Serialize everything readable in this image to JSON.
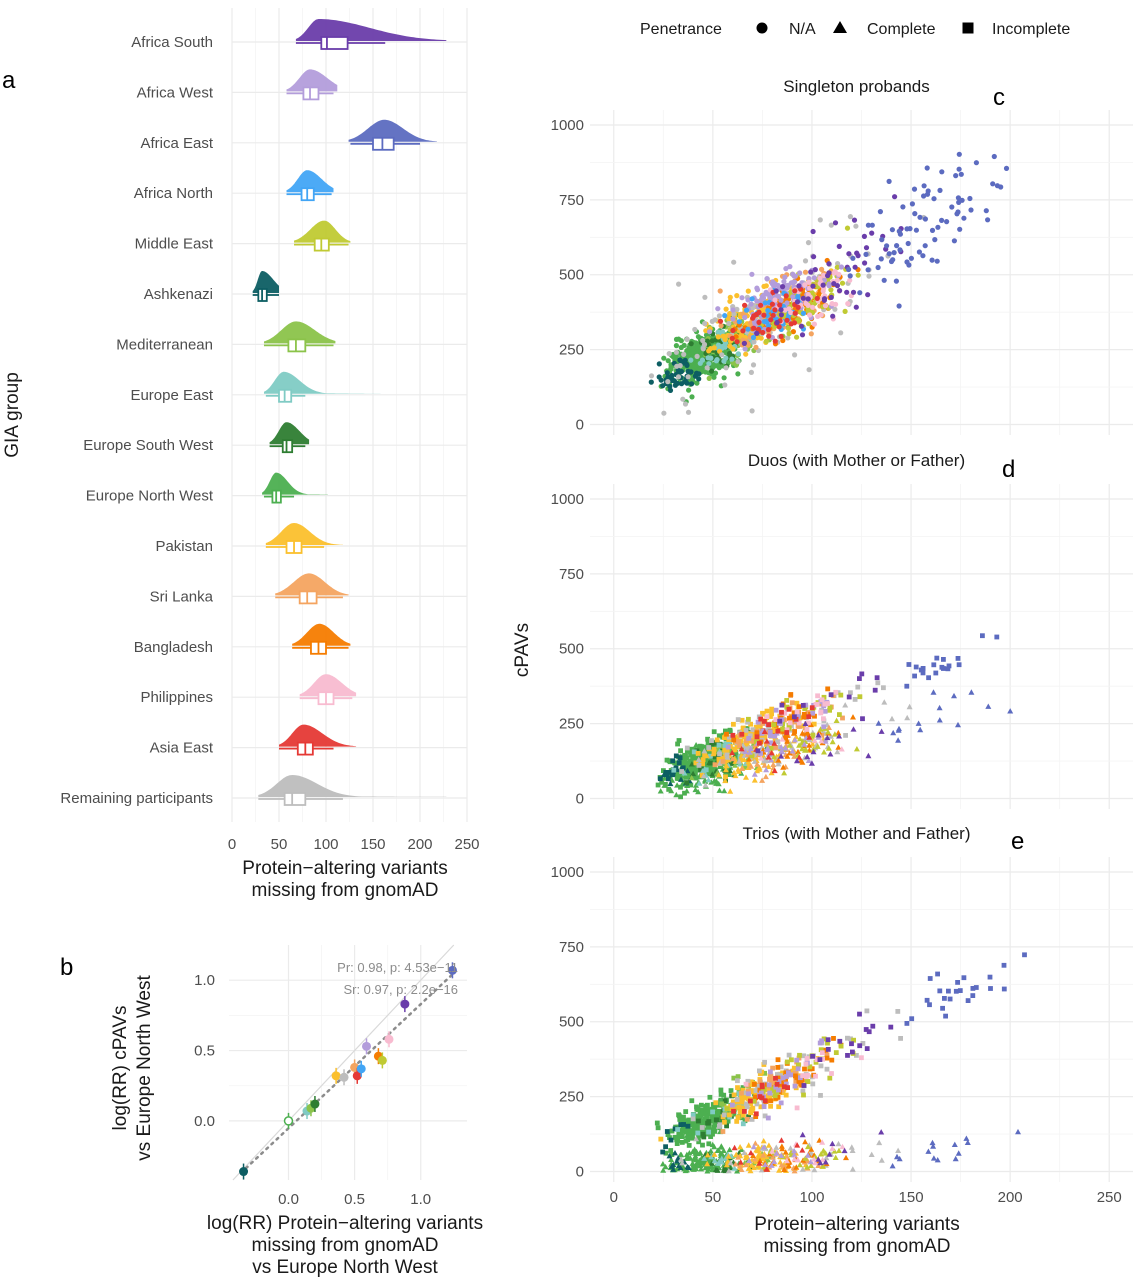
{
  "colors": {
    "Africa South": "#6a3daa",
    "Africa West": "#b39ddb",
    "Africa East": "#5c6bc0",
    "Africa North": "#42a5f5",
    "Middle East": "#c0ca33",
    "Ashkenazi": "#0d5e63",
    "Mediterranean": "#8bc34a",
    "Europe East": "#80cbc4",
    "Europe South West": "#2e7d32",
    "Europe North West": "#4caf50",
    "Pakistan": "#fbc02d",
    "Sri Lanka": "#f4a460",
    "Bangladesh": "#f57c00",
    "Philippines": "#f8bbd0",
    "Asia East": "#e53935",
    "Remaining participants": "#bdbdbd"
  },
  "legend": {
    "title": "Penetrance",
    "items": [
      {
        "label": "N/A",
        "shape": "circle"
      },
      {
        "label": "Complete",
        "shape": "triangle"
      },
      {
        "label": "Incomplete",
        "shape": "square"
      }
    ]
  },
  "chart_data": [
    {
      "panel": "a",
      "type": "raincloud",
      "ylabel": "GIA group",
      "xlabel": "Protein−altering variants missing from gnomAD",
      "xlabel_lines": [
        "Protein−altering variants",
        "missing from gnomAD"
      ],
      "xlim": [
        0,
        250
      ],
      "xticks": [
        0,
        50,
        100,
        150,
        200,
        250
      ],
      "groups": [
        {
          "name": "Africa South",
          "q1": 95,
          "median": 101,
          "q3": 123,
          "whisker_low": 68,
          "whisker_high": 163,
          "peak": 92,
          "dens_low": 68,
          "dens_high": 228
        },
        {
          "name": "Africa West",
          "q1": 76,
          "median": 83,
          "q3": 92,
          "whisker_low": 58,
          "whisker_high": 108,
          "peak": 83,
          "dens_low": 58,
          "dens_high": 112
        },
        {
          "name": "Africa East",
          "q1": 150,
          "median": 160,
          "q3": 172,
          "whisker_low": 126,
          "whisker_high": 200,
          "peak": 162,
          "dens_low": 124,
          "dens_high": 218
        },
        {
          "name": "Africa North",
          "q1": 74,
          "median": 80,
          "q3": 87,
          "whisker_low": 58,
          "whisker_high": 106,
          "peak": 80,
          "dens_low": 58,
          "dens_high": 108
        },
        {
          "name": "Middle East",
          "q1": 88,
          "median": 95,
          "q3": 103,
          "whisker_low": 66,
          "whisker_high": 124,
          "peak": 98,
          "dens_low": 66,
          "dens_high": 126
        },
        {
          "name": "Ashkenazi",
          "q1": 28,
          "median": 32,
          "q3": 37,
          "whisker_low": 22,
          "whisker_high": 50,
          "peak": 32,
          "dens_low": 22,
          "dens_high": 50
        },
        {
          "name": "Mediterranean",
          "q1": 60,
          "median": 68,
          "q3": 78,
          "whisker_low": 34,
          "whisker_high": 108,
          "peak": 68,
          "dens_low": 34,
          "dens_high": 110
        },
        {
          "name": "Europe East",
          "q1": 50,
          "median": 56,
          "q3": 63,
          "whisker_low": 36,
          "whisker_high": 78,
          "peak": 55,
          "dens_low": 34,
          "dens_high": 158
        },
        {
          "name": "Europe South West",
          "q1": 54,
          "median": 58,
          "q3": 64,
          "whisker_low": 40,
          "whisker_high": 78,
          "peak": 58,
          "dens_low": 40,
          "dens_high": 82
        },
        {
          "name": "Europe North West",
          "q1": 43,
          "median": 47,
          "q3": 52,
          "whisker_low": 34,
          "whisker_high": 66,
          "peak": 47,
          "dens_low": 32,
          "dens_high": 102
        },
        {
          "name": "Pakistan",
          "q1": 58,
          "median": 66,
          "q3": 74,
          "whisker_low": 36,
          "whisker_high": 98,
          "peak": 66,
          "dens_low": 36,
          "dens_high": 118
        },
        {
          "name": "Sri Lanka",
          "q1": 72,
          "median": 80,
          "q3": 90,
          "whisker_low": 46,
          "whisker_high": 118,
          "peak": 82,
          "dens_low": 46,
          "dens_high": 124
        },
        {
          "name": "Bangladesh",
          "q1": 84,
          "median": 92,
          "q3": 100,
          "whisker_low": 64,
          "whisker_high": 124,
          "peak": 93,
          "dens_low": 64,
          "dens_high": 126
        },
        {
          "name": "Philippines",
          "q1": 92,
          "median": 100,
          "q3": 108,
          "whisker_low": 72,
          "whisker_high": 128,
          "peak": 100,
          "dens_low": 72,
          "dens_high": 132
        },
        {
          "name": "Asia East",
          "q1": 70,
          "median": 78,
          "q3": 86,
          "whisker_low": 50,
          "whisker_high": 108,
          "peak": 76,
          "dens_low": 50,
          "dens_high": 132
        },
        {
          "name": "Remaining participants",
          "q1": 56,
          "median": 64,
          "q3": 78,
          "whisker_low": 28,
          "whisker_high": 118,
          "peak": 64,
          "dens_low": 28,
          "dens_high": 228
        }
      ]
    },
    {
      "panel": "b",
      "type": "scatter",
      "ylabel": "log(RR) cPAVs vs Europe North West",
      "ylabel_lines": [
        "log(RR) cPAVs",
        "vs Europe North West"
      ],
      "xlabel": "log(RR) Protein−altering variants missing from gnomAD vs Europe North West",
      "xlabel_lines": [
        "log(RR) Protein−altering variants",
        "missing from gnomAD",
        "vs Europe North West"
      ],
      "xlim": [
        -0.45,
        1.35
      ],
      "ylim": [
        -0.42,
        1.25
      ],
      "xticks": [
        0.0,
        0.5,
        1.0
      ],
      "xtick_labels": [
        "0.0",
        "0.5",
        "1.0"
      ],
      "yticks": [
        0.0,
        0.5,
        1.0
      ],
      "ytick_labels": [
        "0.0",
        "0.5",
        "1.0"
      ],
      "annotations": [
        "Pr: 0.98, p: 4.53e−11",
        "Sr: 0.97, p: 2.2e−16"
      ],
      "points": [
        {
          "group": "Ashkenazi",
          "x": -0.34,
          "y": -0.36
        },
        {
          "group": "Europe North West",
          "x": 0.0,
          "y": 0.0
        },
        {
          "group": "Europe East",
          "x": 0.14,
          "y": 0.07
        },
        {
          "group": "Mediterranean",
          "x": 0.17,
          "y": 0.09
        },
        {
          "group": "Europe South West",
          "x": 0.2,
          "y": 0.12
        },
        {
          "group": "Pakistan",
          "x": 0.36,
          "y": 0.32
        },
        {
          "group": "Remaining participants",
          "x": 0.42,
          "y": 0.31
        },
        {
          "group": "Sri Lanka",
          "x": 0.5,
          "y": 0.38
        },
        {
          "group": "Asia East",
          "x": 0.52,
          "y": 0.32
        },
        {
          "group": "Bangladesh",
          "x": 0.68,
          "y": 0.46
        },
        {
          "group": "Middle East",
          "x": 0.71,
          "y": 0.43
        },
        {
          "group": "Africa North",
          "x": 0.55,
          "y": 0.37
        },
        {
          "group": "Africa West",
          "x": 0.59,
          "y": 0.53
        },
        {
          "group": "Philippines",
          "x": 0.76,
          "y": 0.58
        },
        {
          "group": "Africa South",
          "x": 0.88,
          "y": 0.83
        },
        {
          "group": "Africa East",
          "x": 1.24,
          "y": 1.07
        }
      ]
    },
    {
      "panel": "c",
      "type": "scatter",
      "title": "Singleton probands",
      "xlim": [
        -12,
        262
      ],
      "ylim": [
        -35,
        1050
      ],
      "xticks": [
        0,
        50,
        100,
        150,
        200,
        250
      ],
      "yticks": [
        0,
        250,
        500,
        750,
        1000
      ],
      "shape": "circle",
      "clusters": [
        {
          "group": "Europe North West",
          "n": 420,
          "cx": 45,
          "cy": 230,
          "sx": 9,
          "sy": 38,
          "r": 0.5
        },
        {
          "group": "Mediterranean",
          "n": 60,
          "cx": 65,
          "cy": 300,
          "sx": 10,
          "sy": 40,
          "r": 0.5
        },
        {
          "group": "Europe South West",
          "n": 50,
          "cx": 55,
          "cy": 260,
          "sx": 8,
          "sy": 35,
          "r": 0.5
        },
        {
          "group": "Ashkenazi",
          "n": 45,
          "cx": 32,
          "cy": 160,
          "sx": 5,
          "sy": 25,
          "r": 0.3
        },
        {
          "group": "Europe East",
          "n": 40,
          "cx": 55,
          "cy": 260,
          "sx": 8,
          "sy": 35,
          "r": 0.5
        },
        {
          "group": "Pakistan",
          "n": 130,
          "cx": 70,
          "cy": 350,
          "sx": 12,
          "sy": 45,
          "r": 0.55
        },
        {
          "group": "Remaining participants",
          "n": 110,
          "cx": 80,
          "cy": 360,
          "sx": 30,
          "sy": 100,
          "r": 0.8
        },
        {
          "group": "Sri Lanka",
          "n": 90,
          "cx": 82,
          "cy": 380,
          "sx": 12,
          "sy": 45,
          "r": 0.55
        },
        {
          "group": "Bangladesh",
          "n": 100,
          "cx": 90,
          "cy": 390,
          "sx": 12,
          "sy": 40,
          "r": 0.55
        },
        {
          "group": "Middle East",
          "n": 80,
          "cx": 95,
          "cy": 400,
          "sx": 12,
          "sy": 45,
          "r": 0.55
        },
        {
          "group": "Africa West",
          "n": 110,
          "cx": 82,
          "cy": 420,
          "sx": 12,
          "sy": 45,
          "r": 0.55
        },
        {
          "group": "Africa North",
          "n": 40,
          "cx": 80,
          "cy": 370,
          "sx": 10,
          "sy": 40,
          "r": 0.5
        },
        {
          "group": "Philippines",
          "n": 50,
          "cx": 100,
          "cy": 410,
          "sx": 10,
          "sy": 40,
          "r": 0.5
        },
        {
          "group": "Asia East",
          "n": 40,
          "cx": 78,
          "cy": 360,
          "sx": 10,
          "sy": 40,
          "r": 0.5
        },
        {
          "group": "Africa South",
          "n": 50,
          "cx": 105,
          "cy": 480,
          "sx": 18,
          "sy": 70,
          "r": 0.7
        },
        {
          "group": "Africa East",
          "n": 80,
          "cx": 160,
          "cy": 690,
          "sx": 18,
          "sy": 90,
          "r": 0.8
        }
      ]
    },
    {
      "panel": "d",
      "type": "scatter",
      "title": "Duos (with Mother or Father)",
      "xlim": [
        -12,
        262
      ],
      "ylim": [
        -35,
        1050
      ],
      "xticks": [
        0,
        50,
        100,
        150,
        200,
        250
      ],
      "yticks": [
        0,
        250,
        500,
        750,
        1000
      ],
      "ylabel": "cPAVs",
      "bands": [
        {
          "shape": "square",
          "slope": 2.75,
          "intercept": 10
        },
        {
          "shape": "triangle",
          "slope": 1.55,
          "intercept": 30
        }
      ],
      "clusters": [
        {
          "group": "Europe North West",
          "n": 400,
          "cx": 45,
          "cy": 0,
          "sx": 9,
          "sy": 30,
          "r": 0.5
        },
        {
          "group": "Ashkenazi",
          "n": 25,
          "cx": 30,
          "cy": 0,
          "sx": 4,
          "sy": 20,
          "r": 0.2
        },
        {
          "group": "Europe South West",
          "n": 40,
          "cx": 55,
          "cy": 0,
          "sx": 8,
          "sy": 30,
          "r": 0.5
        },
        {
          "group": "Mediterranean",
          "n": 40,
          "cx": 65,
          "cy": 0,
          "sx": 10,
          "sy": 30,
          "r": 0.5
        },
        {
          "group": "Europe East",
          "n": 30,
          "cx": 55,
          "cy": 0,
          "sx": 8,
          "sy": 30,
          "r": 0.5
        },
        {
          "group": "Pakistan",
          "n": 160,
          "cx": 70,
          "cy": 0,
          "sx": 12,
          "sy": 35,
          "r": 0.5
        },
        {
          "group": "Remaining participants",
          "n": 90,
          "cx": 80,
          "cy": 0,
          "sx": 25,
          "sy": 40,
          "r": 0.6
        },
        {
          "group": "Sri Lanka",
          "n": 60,
          "cx": 82,
          "cy": 0,
          "sx": 12,
          "sy": 35,
          "r": 0.5
        },
        {
          "group": "Bangladesh",
          "n": 60,
          "cx": 90,
          "cy": 0,
          "sx": 12,
          "sy": 35,
          "r": 0.5
        },
        {
          "group": "Middle East",
          "n": 50,
          "cx": 95,
          "cy": 0,
          "sx": 12,
          "sy": 35,
          "r": 0.5
        },
        {
          "group": "Africa West",
          "n": 50,
          "cx": 85,
          "cy": 0,
          "sx": 12,
          "sy": 35,
          "r": 0.5
        },
        {
          "group": "Philippines",
          "n": 25,
          "cx": 100,
          "cy": 0,
          "sx": 10,
          "sy": 30,
          "r": 0.5
        },
        {
          "group": "Asia East",
          "n": 25,
          "cx": 78,
          "cy": 0,
          "sx": 10,
          "sy": 30,
          "r": 0.5
        },
        {
          "group": "Africa South",
          "n": 25,
          "cx": 110,
          "cy": 0,
          "sx": 15,
          "sy": 40,
          "r": 0.5
        },
        {
          "group": "Africa East",
          "n": 35,
          "cx": 160,
          "cy": 0,
          "sx": 15,
          "sy": 30,
          "r": 0.5
        }
      ]
    },
    {
      "panel": "e",
      "type": "scatter",
      "title": "Trios (with Mother and Father)",
      "xlim": [
        -12,
        262
      ],
      "ylim": [
        -35,
        1050
      ],
      "xticks": [
        0,
        50,
        100,
        150,
        200,
        250
      ],
      "xtick_labels": [
        "0",
        "50",
        "100",
        "150",
        "200",
        "250"
      ],
      "yticks": [
        0,
        250,
        500,
        750,
        1000
      ],
      "xlabel": "Protein−altering variants missing from gnomAD",
      "xlabel_lines": [
        "Protein−altering variants",
        "missing from gnomAD"
      ],
      "bands": [
        {
          "shape": "square",
          "slope": 3.3,
          "intercept": 20
        },
        {
          "shape": "triangle",
          "slope": 0.38,
          "intercept": 5
        }
      ],
      "clusters": [
        {
          "group": "Europe North West",
          "n": 420,
          "cx": 45,
          "cy": 0,
          "sx": 9,
          "sy": 30,
          "r": 0.5
        },
        {
          "group": "Ashkenazi",
          "n": 25,
          "cx": 30,
          "cy": 0,
          "sx": 4,
          "sy": 20,
          "r": 0.5
        },
        {
          "group": "Europe South West",
          "n": 40,
          "cx": 55,
          "cy": 0,
          "sx": 8,
          "sy": 30,
          "r": 0.5
        },
        {
          "group": "Mediterranean",
          "n": 40,
          "cx": 65,
          "cy": 0,
          "sx": 10,
          "sy": 30,
          "r": 0.5
        },
        {
          "group": "Europe East",
          "n": 30,
          "cx": 55,
          "cy": 0,
          "sx": 8,
          "sy": 30,
          "r": 0.5
        },
        {
          "group": "Pakistan",
          "n": 170,
          "cx": 72,
          "cy": 0,
          "sx": 12,
          "sy": 35,
          "r": 0.5
        },
        {
          "group": "Remaining participants",
          "n": 90,
          "cx": 85,
          "cy": 0,
          "sx": 28,
          "sy": 40,
          "r": 0.5
        },
        {
          "group": "Sri Lanka",
          "n": 60,
          "cx": 82,
          "cy": 0,
          "sx": 12,
          "sy": 35,
          "r": 0.5
        },
        {
          "group": "Bangladesh",
          "n": 70,
          "cx": 90,
          "cy": 0,
          "sx": 12,
          "sy": 35,
          "r": 0.6
        },
        {
          "group": "Middle East",
          "n": 50,
          "cx": 95,
          "cy": 0,
          "sx": 12,
          "sy": 35,
          "r": 0.5
        },
        {
          "group": "Africa West",
          "n": 40,
          "cx": 85,
          "cy": 0,
          "sx": 12,
          "sy": 35,
          "r": 0.5
        },
        {
          "group": "Philippines",
          "n": 25,
          "cx": 100,
          "cy": 0,
          "sx": 10,
          "sy": 30,
          "r": 0.5
        },
        {
          "group": "Asia East",
          "n": 25,
          "cx": 78,
          "cy": 0,
          "sx": 10,
          "sy": 30,
          "r": 0.5
        },
        {
          "group": "Africa South",
          "n": 25,
          "cx": 115,
          "cy": 0,
          "sx": 15,
          "sy": 40,
          "r": 0.5
        },
        {
          "group": "Africa East",
          "n": 40,
          "cx": 170,
          "cy": 0,
          "sx": 18,
          "sy": 30,
          "r": 0.5
        }
      ]
    }
  ],
  "panel_letters": [
    "a",
    "b",
    "c",
    "d",
    "e"
  ]
}
